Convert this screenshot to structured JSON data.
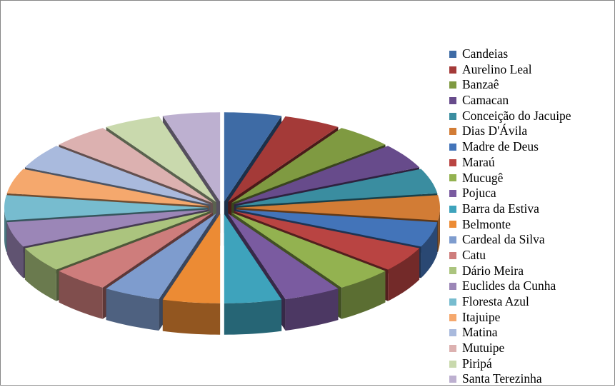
{
  "chart_data": {
    "type": "pie",
    "style": "3d-exploded",
    "title": "",
    "legend_position": "right",
    "slices": [
      {
        "label": "Candeias",
        "value": 1,
        "color": "#3E6BA5"
      },
      {
        "label": "Aurelino Leal",
        "value": 1,
        "color": "#A43A38"
      },
      {
        "label": "Banzaê",
        "value": 1,
        "color": "#7F9A41"
      },
      {
        "label": "Camacan",
        "value": 1,
        "color": "#674B8B"
      },
      {
        "label": "Conceição do Jacuipe",
        "value": 1,
        "color": "#3A8DA0"
      },
      {
        "label": "Dias D'Ávila",
        "value": 1,
        "color": "#D27C35"
      },
      {
        "label": "Madre de Deus",
        "value": 1,
        "color": "#4374B9"
      },
      {
        "label": "Maraú",
        "value": 1,
        "color": "#B94442"
      },
      {
        "label": "Mucugê",
        "value": 1,
        "color": "#93B250"
      },
      {
        "label": "Pojuca",
        "value": 1,
        "color": "#7A5BA0"
      },
      {
        "label": "Barra da Estiva",
        "value": 1,
        "color": "#3EA3BC"
      },
      {
        "label": "Belmonte",
        "value": 1,
        "color": "#EC8B34"
      },
      {
        "label": "Cardeal da Silva",
        "value": 1,
        "color": "#7E9CCE"
      },
      {
        "label": "Catu",
        "value": 1,
        "color": "#CE7D7C"
      },
      {
        "label": "Dário Meira",
        "value": 1,
        "color": "#ABC47E"
      },
      {
        "label": "Euclides da Cunha",
        "value": 1,
        "color": "#9B86B7"
      },
      {
        "label": "Floresta Azul",
        "value": 1,
        "color": "#77BCCF"
      },
      {
        "label": "Itajuipe",
        "value": 1,
        "color": "#F5A86D"
      },
      {
        "label": "Matina",
        "value": 1,
        "color": "#A9BADD"
      },
      {
        "label": "Mutuipe",
        "value": 1,
        "color": "#DCB1B0"
      },
      {
        "label": "Piripá",
        "value": 1,
        "color": "#C9D9AD"
      },
      {
        "label": "Santa Terezinha",
        "value": 1,
        "color": "#BDB0D0"
      }
    ]
  }
}
